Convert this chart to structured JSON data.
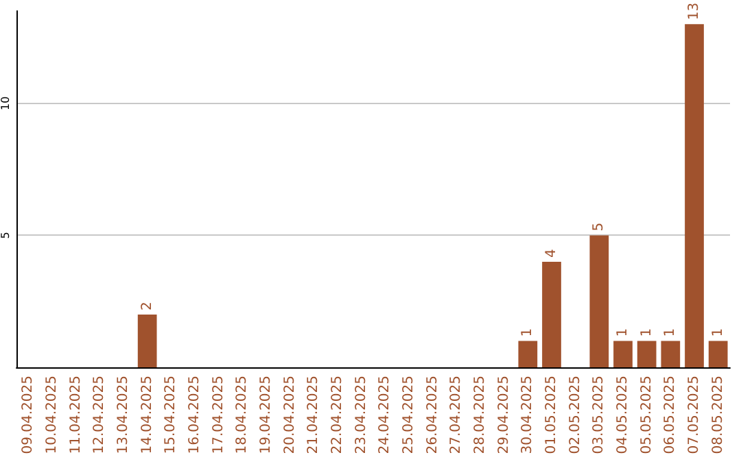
{
  "chart_data": {
    "type": "bar",
    "categories": [
      "09.04.2025",
      "10.04.2025",
      "11.04.2025",
      "12.04.2025",
      "13.04.2025",
      "14.04.2025",
      "15.04.2025",
      "16.04.2025",
      "17.04.2025",
      "18.04.2025",
      "19.04.2025",
      "20.04.2025",
      "21.04.2025",
      "22.04.2025",
      "23.04.2025",
      "24.04.2025",
      "25.04.2025",
      "26.04.2025",
      "27.04.2025",
      "28.04.2025",
      "29.04.2025",
      "30.04.2025",
      "01.05.2025",
      "02.05.2025",
      "03.05.2025",
      "04.05.2025",
      "05.05.2025",
      "06.05.2025",
      "07.05.2025",
      "08.05.2025"
    ],
    "values": [
      0,
      0,
      0,
      0,
      0,
      2,
      0,
      0,
      0,
      0,
      0,
      0,
      0,
      0,
      0,
      0,
      0,
      0,
      0,
      0,
      0,
      1,
      4,
      0,
      5,
      1,
      1,
      1,
      13,
      1
    ],
    "value_labels": [
      null,
      null,
      null,
      null,
      null,
      "2",
      null,
      null,
      null,
      null,
      null,
      null,
      null,
      null,
      null,
      null,
      null,
      null,
      null,
      null,
      null,
      "1",
      "4",
      null,
      "5",
      "1",
      "1",
      "1",
      "13",
      "1"
    ],
    "color": "#a0522d",
    "ylim": [
      0,
      13.5
    ],
    "yticks": [
      5,
      10
    ],
    "grid": "y"
  }
}
